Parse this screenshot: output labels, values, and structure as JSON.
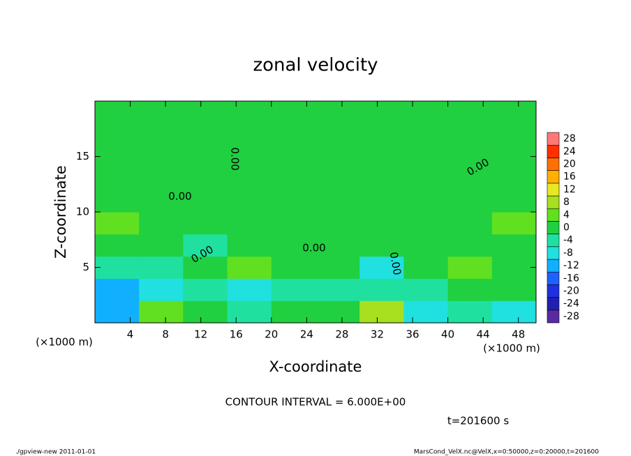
{
  "chart_data": {
    "type": "contour",
    "title": "zonal velocity",
    "x_label": "X-coordinate",
    "y_label": "Z-coordinate",
    "x_unit": "(×1000 m)",
    "y_unit": "(×1000 m)",
    "contour_interval": "CONTOUR INTERVAL = 6.000E+00",
    "time_label": "t=201600 s",
    "footer_left": "./gpview-new   2011-01-01",
    "footer_right": "MarsCond_VelX.nc@VelX,x=0:50000,z=0:20000,t=201600",
    "xlim": [
      0,
      50
    ],
    "ylim": [
      0,
      20
    ],
    "xticks": [
      4,
      8,
      12,
      16,
      20,
      24,
      28,
      32,
      36,
      40,
      44,
      48
    ],
    "yticks": [
      5,
      10,
      15
    ],
    "x": [
      2.5,
      7.5,
      12.5,
      17.5,
      22.5,
      27.5,
      32.5,
      37.5,
      42.5,
      47.5
    ],
    "y": [
      1,
      3,
      5,
      7,
      9,
      11,
      13,
      15,
      17,
      19
    ],
    "z": [
      [
        -10,
        6,
        2,
        -2,
        0,
        2,
        8,
        -6,
        -4,
        -8
      ],
      [
        -10,
        -6,
        -4,
        -6,
        -4,
        -2,
        -2,
        -4,
        0,
        0
      ],
      [
        -4,
        -4,
        2,
        4,
        0,
        2,
        -6,
        0,
        6,
        0
      ],
      [
        2,
        0,
        -2,
        2,
        2,
        0,
        2,
        0,
        2,
        0
      ],
      [
        6,
        2,
        0,
        2,
        2,
        0,
        0,
        0,
        0,
        4
      ],
      [
        2,
        2,
        2,
        0,
        0,
        2,
        2,
        2,
        0,
        2
      ],
      [
        2,
        2,
        2,
        0,
        0,
        2,
        2,
        2,
        2,
        2
      ],
      [
        2,
        2,
        0,
        0,
        0,
        2,
        2,
        2,
        0,
        2
      ],
      [
        2,
        0,
        0,
        0,
        2,
        2,
        2,
        2,
        0,
        2
      ],
      [
        2,
        0,
        0,
        0,
        2,
        2,
        2,
        2,
        2,
        2
      ]
    ],
    "levels": [
      -28,
      -24,
      -20,
      -16,
      -12,
      -8,
      -4,
      0,
      4,
      8,
      12,
      16,
      20,
      24,
      28
    ],
    "colors": [
      "#5a2aa0",
      "#2020b0",
      "#2030e0",
      "#2060ff",
      "#10b0ff",
      "#20e0e0",
      "#20e0a0",
      "#20d040",
      "#60e020",
      "#a8e020",
      "#e8e820",
      "#ffb000",
      "#ff7000",
      "#ff3000",
      "#ff7878"
    ],
    "contour_labels": [
      "0.00",
      "0.00",
      "0.00",
      "0.00",
      "0.00",
      "0.00"
    ]
  }
}
